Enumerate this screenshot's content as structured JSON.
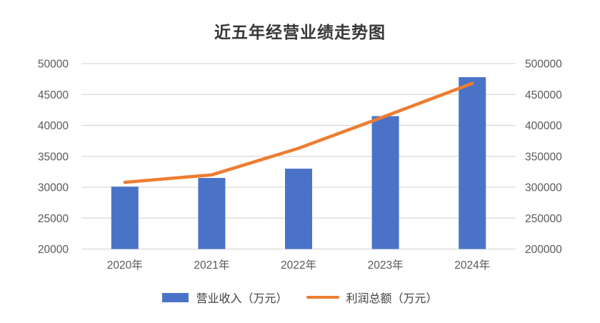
{
  "chart_data": {
    "type": "bar",
    "combo": "bar+line",
    "title": "近五年经营业绩走势图",
    "categories": [
      "2020年",
      "2021年",
      "2022年",
      "2023年",
      "2024年"
    ],
    "series": [
      {
        "name": "营业收入（万元）",
        "type": "bar",
        "axis": "left",
        "color": "#4A73C8",
        "values": [
          30100,
          31500,
          33000,
          41500,
          47800
        ]
      },
      {
        "name": "利润总额（万元）",
        "type": "line",
        "axis": "right",
        "color": "#ED7D31",
        "values": [
          308000,
          320000,
          363000,
          415000,
          468000
        ]
      }
    ],
    "left_axis": {
      "min": 20000,
      "max": 50000,
      "step": 5000,
      "ticks": [
        "20000",
        "25000",
        "30000",
        "35000",
        "40000",
        "45000",
        "50000"
      ]
    },
    "right_axis": {
      "min": 200000,
      "max": 500000,
      "step": 50000,
      "ticks": [
        "200000",
        "250000",
        "300000",
        "350000",
        "400000",
        "450000",
        "500000"
      ]
    },
    "grid": true,
    "legend_position": "bottom",
    "colors": {
      "bar": "#4A73C8",
      "line": "#ED7D31",
      "gridline": "#D9D9D9",
      "axis_text": "#595959",
      "title_text": "#383838"
    }
  }
}
